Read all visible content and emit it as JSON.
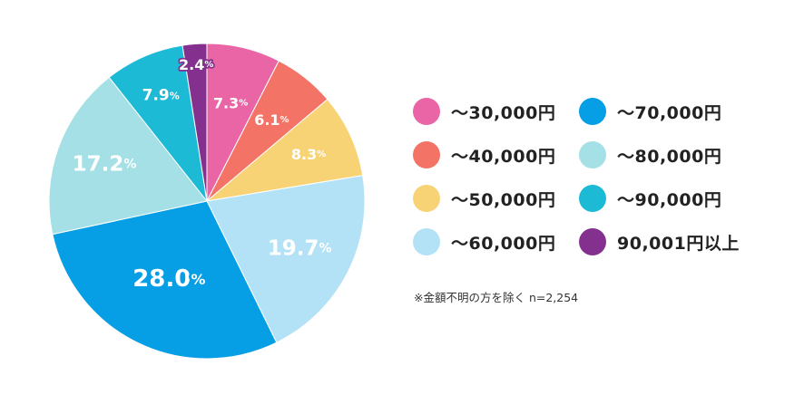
{
  "chart_data": {
    "type": "pie",
    "title": "",
    "start_angle_deg": 0,
    "direction": "clockwise",
    "slices": [
      {
        "label": "〜30,000円",
        "value": 7.3,
        "display": "7.3",
        "color": "#E965A5"
      },
      {
        "label": "〜40,000円",
        "value": 6.1,
        "display": "6.1",
        "color": "#F37466"
      },
      {
        "label": "〜50,000円",
        "value": 8.3,
        "display": "8.3",
        "color": "#F8D375"
      },
      {
        "label": "〜60,000円",
        "value": 19.7,
        "display": "19.7",
        "color": "#B3E2F7"
      },
      {
        "label": "〜70,000円",
        "value": 28.0,
        "display": "28.0",
        "color": "#069FE5"
      },
      {
        "label": "〜80,000円",
        "value": 17.2,
        "display": "17.2",
        "color": "#A4E0E6"
      },
      {
        "label": "〜90,000円",
        "value": 7.9,
        "display": "7.9",
        "color": "#1DBAD6"
      },
      {
        "label": "90,001円以上",
        "value": 2.4,
        "display": "2.4",
        "color": "#84308E"
      }
    ],
    "percent_symbol": "%",
    "legend_placement": "right"
  },
  "legend": {
    "items": [
      {
        "label": "〜30,000円",
        "color": "#E965A5"
      },
      {
        "label": "〜70,000円",
        "color": "#069FE5"
      },
      {
        "label": "〜40,000円",
        "color": "#F37466"
      },
      {
        "label": "〜80,000円",
        "color": "#A4E0E6"
      },
      {
        "label": "〜50,000円",
        "color": "#F8D375"
      },
      {
        "label": "〜90,000円",
        "color": "#1DBAD6"
      },
      {
        "label": "〜60,000円",
        "color": "#B3E2F7"
      },
      {
        "label": "90,001円以上",
        "color": "#84308E"
      }
    ]
  },
  "note": {
    "text": "※金額不明の方を除く n=2,254"
  }
}
